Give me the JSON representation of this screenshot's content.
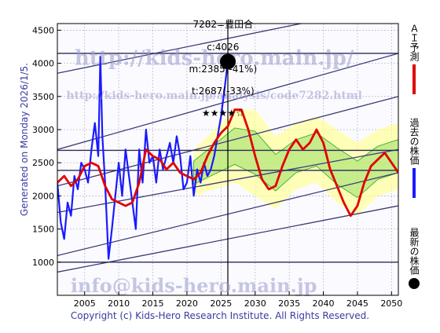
{
  "header": {
    "code_name": "7282=豊田合",
    "c": "c:4026",
    "m": "m:2385(-41%)",
    "t": "t:2687(-33%)",
    "stars": "★★★★☆"
  },
  "side_label": "Generated on Monday 2026/1/5.",
  "footer": "Copyright (c) Kids-Hero Research Institute. All Rights Reserved.",
  "watermarks": {
    "url_top": "http://kids-hero.main.jp/",
    "url_analysis": "http://kids-hero.main.jp/analysis/code7282.html",
    "email": "info@kids-hero.main.jp"
  },
  "legend": {
    "ai": "ＡＩ予測",
    "past": "過去の株価",
    "latest": "最新の株価"
  },
  "colors": {
    "past": "#1a1aff",
    "ai": "#e00000",
    "band_green": "#22aa22",
    "band_yellow": "#ffff99",
    "trend": "#3a3a7a",
    "latest_dot": "#000000"
  },
  "chart_data": {
    "type": "line",
    "xlim": [
      2001,
      2051
    ],
    "ylim": [
      500,
      4600
    ],
    "x_ticks": [
      2005,
      2010,
      2015,
      2020,
      2025,
      2030,
      2035,
      2040,
      2045,
      2050
    ],
    "y_ticks": [
      1000,
      1500,
      2000,
      2500,
      3000,
      3500,
      4000,
      4500
    ],
    "grid": true,
    "latest_point": {
      "x": 2026.0,
      "y": 4026
    },
    "h_lines": [
      1000,
      2385,
      2687,
      4150
    ],
    "v_line": 2026.0,
    "series": [
      {
        "name": "過去の株価",
        "x": [
          2001,
          2001.5,
          2002,
          2002.5,
          2003,
          2003.5,
          2004,
          2004.5,
          2005,
          2005.5,
          2006,
          2006.5,
          2007,
          2007.3,
          2007.6,
          2008,
          2008.5,
          2009,
          2009.5,
          2010,
          2010.5,
          2011,
          2011.5,
          2012,
          2012.5,
          2013,
          2013.5,
          2014,
          2014.5,
          2015,
          2015.5,
          2016,
          2016.5,
          2017,
          2017.5,
          2018,
          2018.5,
          2019,
          2019.5,
          2020,
          2020.5,
          2021,
          2021.5,
          2022,
          2022.5,
          2023,
          2023.5,
          2024,
          2024.5,
          2025,
          2025.5,
          2026
        ],
        "y": [
          2200,
          1600,
          1350,
          1900,
          1700,
          2300,
          2100,
          2500,
          2400,
          2200,
          2700,
          3100,
          2600,
          4100,
          2900,
          2200,
          1050,
          1500,
          2000,
          2500,
          2000,
          2700,
          2300,
          1900,
          1500,
          2700,
          2200,
          3000,
          2500,
          2600,
          2200,
          2700,
          2400,
          2600,
          2800,
          2500,
          2900,
          2600,
          2100,
          2200,
          2600,
          2000,
          2400,
          2200,
          2500,
          2300,
          2400,
          2600,
          2900,
          3200,
          3600,
          4026
        ]
      },
      {
        "name": "ＡＩ予測",
        "x": [
          2001,
          2002,
          2003,
          2004,
          2005,
          2006,
          2007,
          2008,
          2009,
          2010,
          2011,
          2012,
          2013,
          2014,
          2015,
          2016,
          2017,
          2018,
          2019,
          2020,
          2021,
          2022,
          2023,
          2024,
          2025,
          2026,
          2027,
          2028,
          2029,
          2030,
          2031,
          2032,
          2033,
          2034,
          2035,
          2036,
          2037,
          2038,
          2039,
          2040,
          2041,
          2042,
          2043,
          2044,
          2045,
          2046,
          2047,
          2048,
          2049,
          2050,
          2051
        ],
        "y": [
          2200,
          2300,
          2150,
          2250,
          2450,
          2500,
          2450,
          2150,
          1950,
          1900,
          1850,
          1900,
          2200,
          2700,
          2600,
          2550,
          2400,
          2500,
          2350,
          2300,
          2250,
          2350,
          2600,
          2800,
          2950,
          3050,
          3300,
          3300,
          3000,
          2600,
          2250,
          2100,
          2150,
          2450,
          2700,
          2850,
          2700,
          2800,
          3000,
          2800,
          2400,
          2150,
          1900,
          1700,
          1850,
          2200,
          2450,
          2550,
          2650,
          2500,
          2350
        ]
      }
    ],
    "bands": [
      {
        "x": [
          2021,
          2024,
          2027,
          2030,
          2033,
          2036,
          2039,
          2042,
          2045,
          2048,
          2051
        ],
        "lower": [
          2000,
          2100,
          2200,
          2000,
          1800,
          2100,
          2200,
          1900,
          1700,
          2000,
          2100
        ],
        "upper": [
          2700,
          3000,
          3300,
          3300,
          2900,
          3100,
          3200,
          3000,
          2800,
          3000,
          3100
        ]
      }
    ],
    "trend_lines": [
      {
        "x": [
          2001,
          2051
        ],
        "y": [
          3850,
          4900
        ]
      },
      {
        "x": [
          2001,
          2051
        ],
        "y": [
          2700,
          4150
        ]
      },
      {
        "x": [
          2001,
          2051
        ],
        "y": [
          2150,
          3500
        ]
      },
      {
        "x": [
          2001,
          2051
        ],
        "y": [
          1750,
          2700
        ]
      },
      {
        "x": [
          2001,
          2051
        ],
        "y": [
          1100,
          2350
        ]
      },
      {
        "x": [
          2001,
          2051
        ],
        "y": [
          850,
          1850
        ]
      }
    ]
  }
}
